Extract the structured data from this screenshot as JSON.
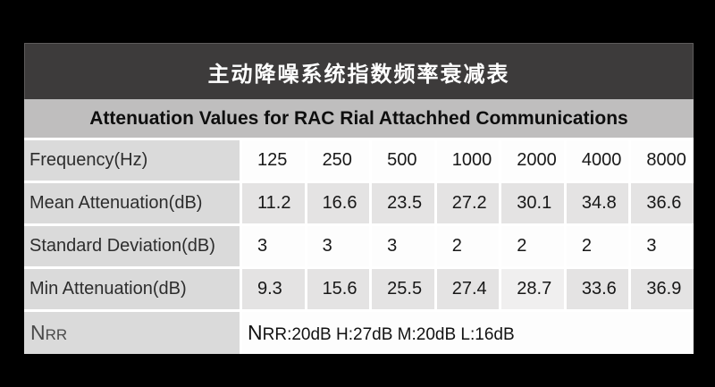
{
  "page": {
    "background_color": "#000000"
  },
  "title_banner": {
    "text": "主动降噪系统指数频率衰减表",
    "bg_color": "#3d3b3b",
    "text_color": "#ffffff"
  },
  "subtitle_bar": {
    "text": "Attenuation Values for RAC Rial Attachhed Communications",
    "bg_color": "#bfbebe",
    "text_color": "#0e0e0e"
  },
  "table": {
    "rows": [
      {
        "label": "Frequency(Hz)",
        "values": [
          "125",
          "250",
          "500",
          "1000",
          "2000",
          "4000",
          "8000"
        ],
        "shade": "white"
      },
      {
        "label": "Mean Attenuation(dB)",
        "values": [
          "11.2",
          "16.6",
          "23.5",
          "27.2",
          "30.1",
          "34.8",
          "36.6"
        ],
        "shade": "gray"
      },
      {
        "label": "Standard Deviation(dB)",
        "values": [
          "3",
          "3",
          "3",
          "2",
          "2",
          "2",
          "3"
        ],
        "shade": "white"
      },
      {
        "label": "Min Attenuation(dB)",
        "values": [
          "9.3",
          "15.6",
          "25.5",
          "27.4",
          "28.7",
          "33.6",
          "36.9"
        ],
        "shade": "gray"
      }
    ],
    "highlight_cell": {
      "row": 3,
      "col": 4,
      "color": "#f0efef"
    },
    "nrr": {
      "label": "NRR",
      "value": "NRR:20dB H:27dB M:20dB L:16dB"
    },
    "colors": {
      "label_column": "#dadada",
      "gray_cell": "#e4e3e3",
      "white_cell": "#fdfdfd"
    }
  },
  "chart_data": {
    "type": "table",
    "title": "主动降噪系统指数频率衰减表",
    "subtitle": "Attenuation Values for RAC Rial Attachhed Communications",
    "categories": [
      125,
      250,
      500,
      1000,
      2000,
      4000,
      8000
    ],
    "category_label": "Frequency(Hz)",
    "series": [
      {
        "name": "Mean Attenuation(dB)",
        "values": [
          11.2,
          16.6,
          23.5,
          27.2,
          30.1,
          34.8,
          36.6
        ]
      },
      {
        "name": "Standard Deviation(dB)",
        "values": [
          3,
          3,
          3,
          2,
          2,
          2,
          3
        ]
      },
      {
        "name": "Min Attenuation(dB)",
        "values": [
          9.3,
          15.6,
          25.5,
          27.4,
          28.7,
          33.6,
          36.9
        ]
      }
    ],
    "nrr_summary": "NRR:20dB H:27dB M:20dB L:16dB",
    "nrr_values": {
      "NRR": "20dB",
      "H": "27dB",
      "M": "20dB",
      "L": "16dB"
    }
  }
}
